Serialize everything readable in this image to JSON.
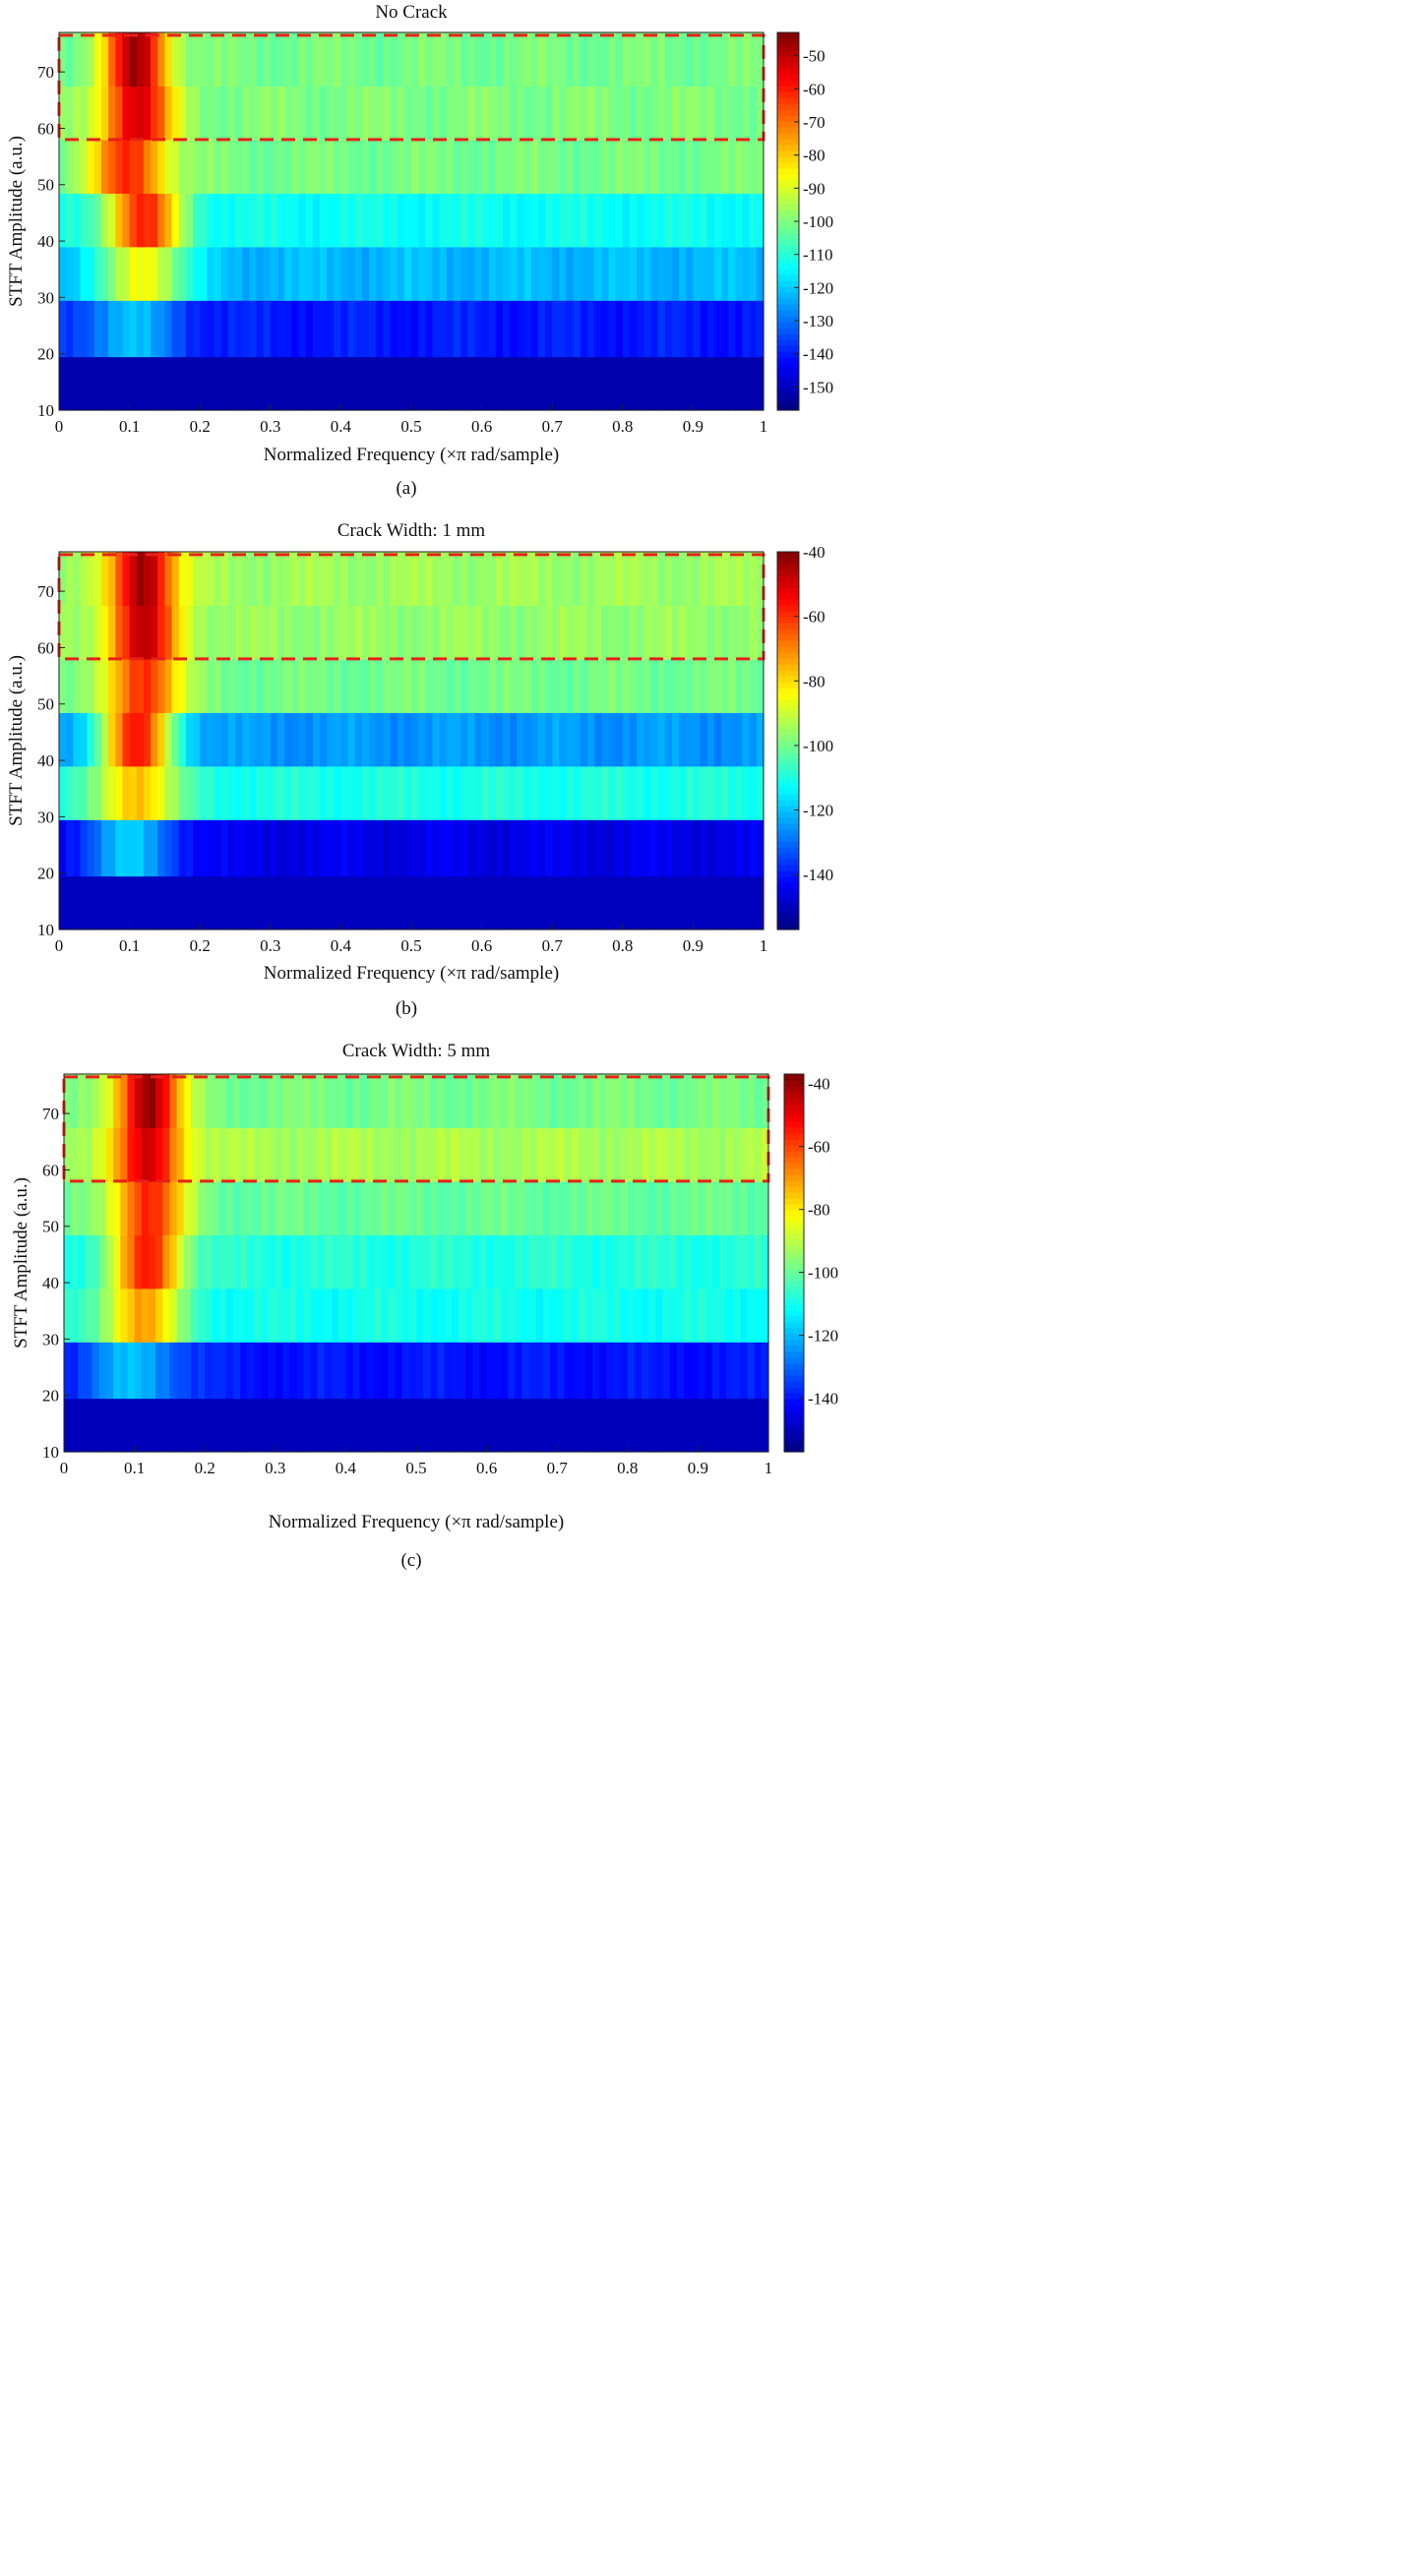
{
  "chart_data": [
    {
      "type": "heatmap",
      "panel_label": "(a)",
      "title": "No Crack",
      "xlabel": "Normalized Frequency (×π rad/sample)",
      "ylabel": "STFT Amplitude (a.u.)",
      "xlim": [
        0,
        1
      ],
      "ylim": [
        10,
        77
      ],
      "xticks": [
        0,
        0.1,
        0.2,
        0.3,
        0.4,
        0.5,
        0.6,
        0.7,
        0.8,
        0.9,
        1
      ],
      "xtick_labels": [
        "0",
        "0.1",
        "0.2",
        "0.3",
        "0.4",
        "0.5",
        "0.6",
        "0.7",
        "0.8",
        "0.9",
        "1"
      ],
      "yticks": [
        10,
        20,
        30,
        40,
        50,
        60,
        70
      ],
      "ytick_labels": [
        "10",
        "20",
        "30",
        "40",
        "50",
        "60",
        "70"
      ],
      "colorbar": {
        "range": [
          -157,
          -43
        ],
        "ticks": [
          -50,
          -60,
          -70,
          -80,
          -90,
          -100,
          -110,
          -120,
          -130,
          -140,
          -150
        ],
        "tick_labels": [
          "-50",
          "-60",
          "-70",
          "-80",
          "-90",
          "-100",
          "-110",
          "-120",
          "-130",
          "-140",
          "-150"
        ]
      },
      "highlight_box": {
        "x0": 0,
        "x1": 1,
        "y0": 58,
        "y1": 76.5,
        "color": "#e8201a",
        "style": "dashed"
      },
      "rows": [
        {
          "y0": 10,
          "y1": 19.5,
          "peak": -152,
          "floor": -152,
          "center": 0.12,
          "width": 0.06
        },
        {
          "y0": 19.5,
          "y1": 29.5,
          "peak": -122,
          "floor": -140,
          "center": 0.1,
          "width": 0.07
        },
        {
          "y0": 29.5,
          "y1": 39,
          "peak": -85,
          "floor": -122,
          "center": 0.12,
          "width": 0.06
        },
        {
          "y0": 39,
          "y1": 48.5,
          "peak": -62,
          "floor": -113,
          "center": 0.12,
          "width": 0.055
        },
        {
          "y0": 48.5,
          "y1": 58,
          "peak": -62,
          "floor": -101,
          "center": 0.1,
          "width": 0.055
        },
        {
          "y0": 58,
          "y1": 67.5,
          "peak": -52,
          "floor": -100,
          "center": 0.11,
          "width": 0.05
        },
        {
          "y0": 67.5,
          "y1": 77,
          "peak": -47,
          "floor": -101,
          "center": 0.11,
          "width": 0.045
        }
      ]
    },
    {
      "type": "heatmap",
      "panel_label": "(b)",
      "title": "Crack Width: 1 mm",
      "xlabel": "Normalized Frequency (×π rad/sample)",
      "ylabel": "STFT Amplitude (a.u.)",
      "xlim": [
        0,
        1
      ],
      "ylim": [
        10,
        77
      ],
      "xticks": [
        0,
        0.1,
        0.2,
        0.3,
        0.4,
        0.5,
        0.6,
        0.7,
        0.8,
        0.9,
        1
      ],
      "xtick_labels": [
        "0",
        "0.1",
        "0.2",
        "0.3",
        "0.4",
        "0.5",
        "0.6",
        "0.7",
        "0.8",
        "0.9",
        "1"
      ],
      "yticks": [
        10,
        20,
        30,
        40,
        50,
        60,
        70
      ],
      "ytick_labels": [
        "10",
        "20",
        "30",
        "40",
        "50",
        "60",
        "70"
      ],
      "colorbar": {
        "range": [
          -157,
          -40
        ],
        "ticks": [
          -40,
          -60,
          -80,
          -100,
          -120,
          -140
        ],
        "tick_labels": [
          "-40",
          "-60",
          "-80",
          "-100",
          "-120",
          "-140"
        ]
      },
      "highlight_box": {
        "x0": 0,
        "x1": 1,
        "y0": 58,
        "y1": 76.5,
        "color": "#e8201a",
        "style": "dashed"
      },
      "rows": [
        {
          "y0": 10,
          "y1": 19.5,
          "peak": -150,
          "floor": -150,
          "center": 0.12,
          "width": 0.06
        },
        {
          "y0": 19.5,
          "y1": 29.5,
          "peak": -120,
          "floor": -145,
          "center": 0.1,
          "width": 0.07
        },
        {
          "y0": 29.5,
          "y1": 39,
          "peak": -75,
          "floor": -110,
          "center": 0.11,
          "width": 0.055
        },
        {
          "y0": 39,
          "y1": 48.5,
          "peak": -58,
          "floor": -125,
          "center": 0.11,
          "width": 0.055
        },
        {
          "y0": 48.5,
          "y1": 58,
          "peak": -58,
          "floor": -100,
          "center": 0.12,
          "width": 0.05
        },
        {
          "y0": 58,
          "y1": 67.5,
          "peak": -48,
          "floor": -96,
          "center": 0.12,
          "width": 0.05
        },
        {
          "y0": 67.5,
          "y1": 77,
          "peak": -42,
          "floor": -95,
          "center": 0.12,
          "width": 0.045
        }
      ]
    },
    {
      "type": "heatmap",
      "panel_label": "(c)",
      "title": "Crack Width: 5 mm",
      "xlabel": "Normalized Frequency (×π rad/sample)",
      "ylabel": "STFT Amplitude (a.u.)",
      "xlim": [
        0,
        1
      ],
      "ylim": [
        10,
        77
      ],
      "xticks": [
        0,
        0.1,
        0.2,
        0.3,
        0.4,
        0.5,
        0.6,
        0.7,
        0.8,
        0.9,
        1
      ],
      "xtick_labels": [
        "0",
        "0.1",
        "0.2",
        "0.3",
        "0.4",
        "0.5",
        "0.6",
        "0.7",
        "0.8",
        "0.9",
        "1"
      ],
      "yticks": [
        10,
        20,
        30,
        40,
        50,
        60,
        70
      ],
      "ytick_labels": [
        "10",
        "20",
        "30",
        "40",
        "50",
        "60",
        "70"
      ],
      "colorbar": {
        "range": [
          -157,
          -37
        ],
        "ticks": [
          -40,
          -60,
          -80,
          -100,
          -120,
          -140
        ],
        "tick_labels": [
          "-40",
          "-60",
          "-80",
          "-100",
          "-120",
          "-140"
        ]
      },
      "highlight_box": {
        "x0": 0,
        "x1": 1,
        "y0": 58,
        "y1": 76.5,
        "color": "#e8201a",
        "style": "dashed"
      },
      "rows": [
        {
          "y0": 10,
          "y1": 19.5,
          "peak": -150,
          "floor": -150,
          "center": 0.12,
          "width": 0.06
        },
        {
          "y0": 19.5,
          "y1": 29.5,
          "peak": -120,
          "floor": -140,
          "center": 0.1,
          "width": 0.07
        },
        {
          "y0": 29.5,
          "y1": 39,
          "peak": -70,
          "floor": -110,
          "center": 0.11,
          "width": 0.055
        },
        {
          "y0": 39,
          "y1": 48.5,
          "peak": -55,
          "floor": -108,
          "center": 0.12,
          "width": 0.05
        },
        {
          "y0": 48.5,
          "y1": 58,
          "peak": -55,
          "floor": -100,
          "center": 0.12,
          "width": 0.05
        },
        {
          "y0": 58,
          "y1": 67.5,
          "peak": -48,
          "floor": -92,
          "center": 0.12,
          "width": 0.05
        },
        {
          "y0": 67.5,
          "y1": 77,
          "peak": -38,
          "floor": -98,
          "center": 0.12,
          "width": 0.045
        }
      ]
    }
  ]
}
